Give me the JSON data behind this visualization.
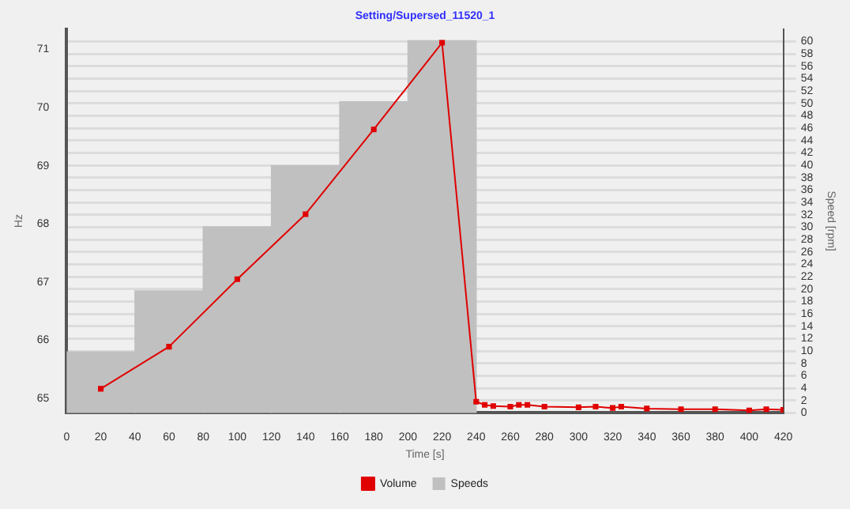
{
  "chart_data": {
    "type": "histogram",
    "title": "Setting/Supersed_11520_1",
    "xlabel": "Time [s]",
    "ylabel": "Hz",
    "y2label": "Speed [rpm]",
    "xlim": [
      0,
      420
    ],
    "xticks": [
      0,
      20,
      40,
      60,
      80,
      100,
      120,
      140,
      160,
      180,
      200,
      220,
      240,
      260,
      280,
      300,
      320,
      340,
      360,
      380,
      400,
      420
    ],
    "ylim": [
      64.75,
      71.35
    ],
    "yticks": [
      65,
      66,
      67,
      68,
      69,
      70,
      71
    ],
    "y2lim": [
      0,
      62
    ],
    "y2ticks": [
      0,
      2,
      4,
      6,
      8,
      10,
      12,
      14,
      16,
      18,
      20,
      22,
      24,
      26,
      28,
      30,
      32,
      34,
      36,
      38,
      40,
      42,
      44,
      46,
      48,
      50,
      52,
      54,
      56,
      58,
      60
    ],
    "grid": "y",
    "legend": "bottom",
    "series": [
      {
        "name": "Speeds",
        "color": "#c0c0c0",
        "bins": [
          0,
          40,
          80,
          120,
          160,
          200,
          240
        ],
        "values": [
          65.8,
          66.85,
          67.95,
          69.0,
          70.1,
          71.15
        ]
      },
      {
        "type": "line",
        "name": "Volume",
        "color": "#e00000",
        "axis": "y2",
        "marker": "square",
        "x": [
          20,
          60,
          100,
          140,
          180,
          220,
          240,
          245,
          250,
          260,
          265,
          270,
          280,
          300,
          310,
          320,
          325,
          340,
          360,
          380,
          400,
          410,
          420
        ],
        "values": [
          3.9,
          10.7,
          21.6,
          32.1,
          45.8,
          59.8,
          1.8,
          1.3,
          1.1,
          1.0,
          1.3,
          1.3,
          1.0,
          0.9,
          1.0,
          0.8,
          1.0,
          0.7,
          0.6,
          0.6,
          0.4,
          0.6,
          0.5
        ]
      }
    ]
  }
}
